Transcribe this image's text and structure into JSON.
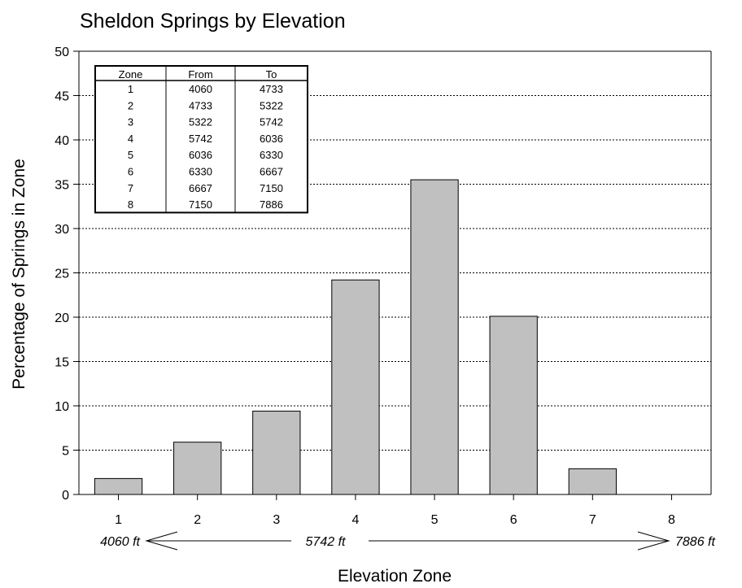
{
  "chart_data": {
    "type": "bar",
    "title": "Sheldon Springs by Elevation",
    "xlabel": "Elevation Zone",
    "ylabel": "Percentage of Springs in Zone",
    "categories": [
      "1",
      "2",
      "3",
      "4",
      "5",
      "6",
      "7",
      "8"
    ],
    "values": [
      1.8,
      5.9,
      9.4,
      24.2,
      35.5,
      20.1,
      2.9,
      0
    ],
    "ylim": [
      0,
      50
    ],
    "yticks": [
      0,
      5,
      10,
      15,
      20,
      25,
      30,
      35,
      40,
      45,
      50
    ],
    "grid": "horizontal-dotted",
    "bar_color": "#c0c0c0",
    "elevation_markers": [
      "4060 ft",
      "5742 ft",
      "7886 ft"
    ],
    "zone_table": {
      "headers": [
        "Zone",
        "From",
        "To"
      ],
      "rows": [
        [
          "1",
          "4060",
          "4733"
        ],
        [
          "2",
          "4733",
          "5322"
        ],
        [
          "3",
          "5322",
          "5742"
        ],
        [
          "4",
          "5742",
          "6036"
        ],
        [
          "5",
          "6036",
          "6330"
        ],
        [
          "6",
          "6330",
          "6667"
        ],
        [
          "7",
          "6667",
          "7150"
        ],
        [
          "8",
          "7150",
          "7886"
        ]
      ]
    }
  }
}
